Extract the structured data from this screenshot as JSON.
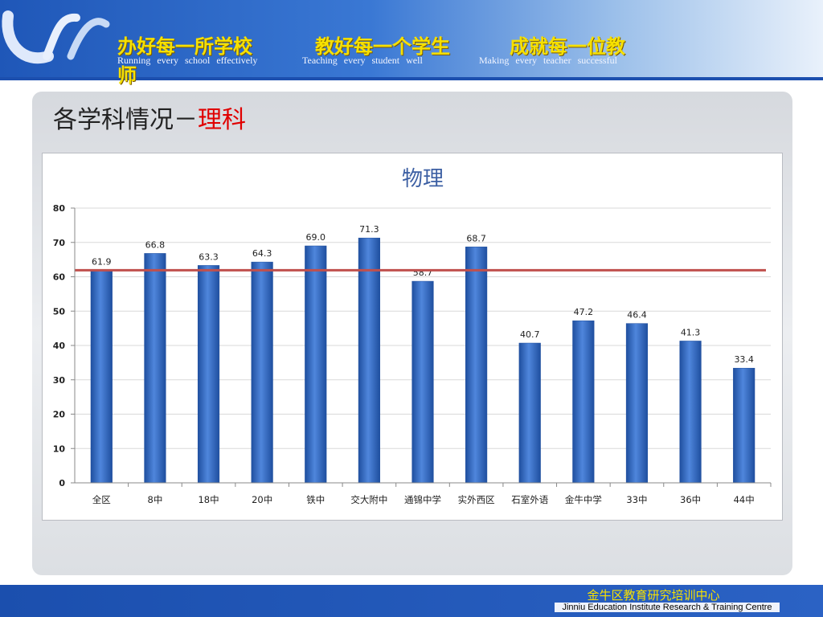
{
  "header": {
    "slogans": [
      "办好每一所学校",
      "教好每一个学生",
      "成就每一位教"
    ],
    "slogan_wrap": "师",
    "slogans_en": [
      "Running every school effectively",
      "Teaching every student well",
      "Making every teacher successful"
    ]
  },
  "section": {
    "title_prefix": "各学科情况－",
    "title_accent": "理科"
  },
  "footer": {
    "cn": "金牛区教育研究培训中心",
    "en": "Jinniu Education Institute Research & Training Centre"
  },
  "colors": {
    "bar": "#3a6fc8",
    "bar_dark": "#1f4f9f",
    "reference_line": "#c0504d",
    "title": "#3c5fa3",
    "slogan": "#f6e000"
  },
  "chart_data": {
    "type": "bar",
    "title": "物理",
    "categories": [
      "全区",
      "8中",
      "18中",
      "20中",
      "铁中",
      "交大附中",
      "通锦中学",
      "实外西区",
      "石室外语",
      "金牛中学",
      "33中",
      "36中",
      "44中"
    ],
    "values": [
      61.9,
      66.8,
      63.3,
      64.3,
      69.0,
      71.3,
      58.7,
      68.7,
      40.7,
      47.2,
      46.4,
      41.3,
      33.4
    ],
    "value_labels": [
      "61.9",
      "66.8",
      "63.3",
      "64.3",
      "69.0",
      "71.3",
      "58.7",
      "68.7",
      "40.7",
      "47.2",
      "46.4",
      "41.3",
      "33.4"
    ],
    "ylim": [
      0,
      80
    ],
    "yticks": [
      0,
      10,
      20,
      30,
      40,
      50,
      60,
      70,
      80
    ],
    "reference_value": 61.9,
    "grid": true,
    "legend": "none"
  }
}
